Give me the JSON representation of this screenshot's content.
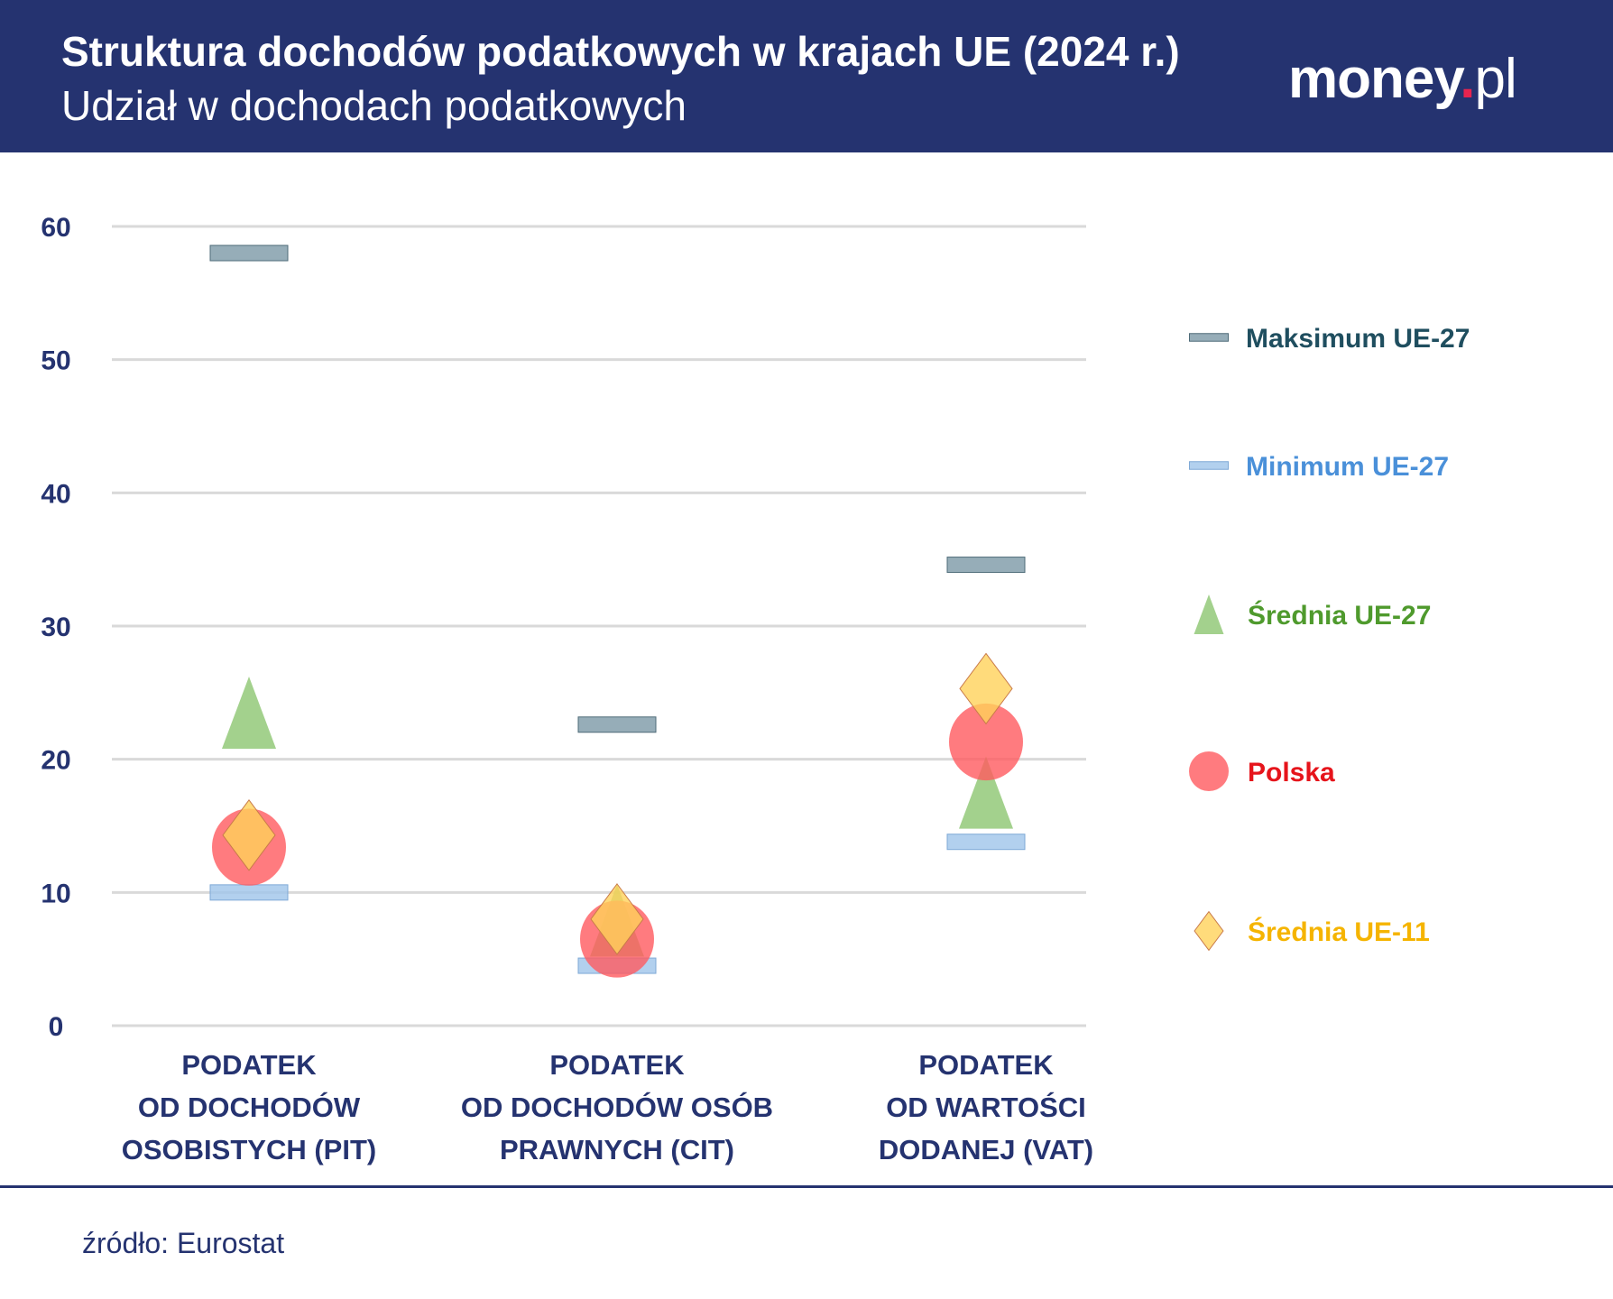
{
  "header": {
    "title": "Struktura dochodów podatkowych w krajach UE (2024 r.)",
    "subtitle": "Udział w dochodach podatkowych",
    "logo": "money.pl"
  },
  "source": "źródło: Eurostat",
  "chart_data": {
    "type": "scatter",
    "ylim": [
      0,
      60
    ],
    "yticks": [
      0,
      10,
      20,
      30,
      40,
      50,
      60
    ],
    "grid": true,
    "legend_placement": "right",
    "categories": [
      [
        "PODATEK",
        "OD DOCHODÓW",
        "OSOBISTYCH (PIT)"
      ],
      [
        "PODATEK",
        "OD DOCHODÓW OSÓB",
        "PRAWNYCH (CIT)"
      ],
      [
        "PODATEK",
        "OD WARTOŚCI",
        "DODANEJ (VAT)"
      ]
    ],
    "series": [
      {
        "name": "Maksimum UE-27",
        "marker": "dash",
        "color": "#7c98a6",
        "label_color": "#1f4e5f",
        "values": [
          58,
          22.6,
          34.6
        ]
      },
      {
        "name": "Minimum UE-27",
        "marker": "dash",
        "color": "#9fc4ea",
        "label_color": "#4a90d9",
        "values": [
          10,
          4.5,
          13.8
        ]
      },
      {
        "name": "Średnia UE-27",
        "marker": "triangle",
        "color": "#8cc671",
        "label_color": "#4f9a2d",
        "values": [
          23.5,
          7.9,
          17.5
        ]
      },
      {
        "name": "Polska",
        "marker": "circle",
        "color": "#ff5a5f",
        "label_color": "#e6141b",
        "values": [
          13.4,
          6.5,
          21.3
        ]
      },
      {
        "name": "Średnia UE-11",
        "marker": "diamond",
        "color": "#ffd25a",
        "label_color": "#f5b400",
        "values": [
          14.3,
          8.0,
          25.3
        ]
      }
    ]
  }
}
